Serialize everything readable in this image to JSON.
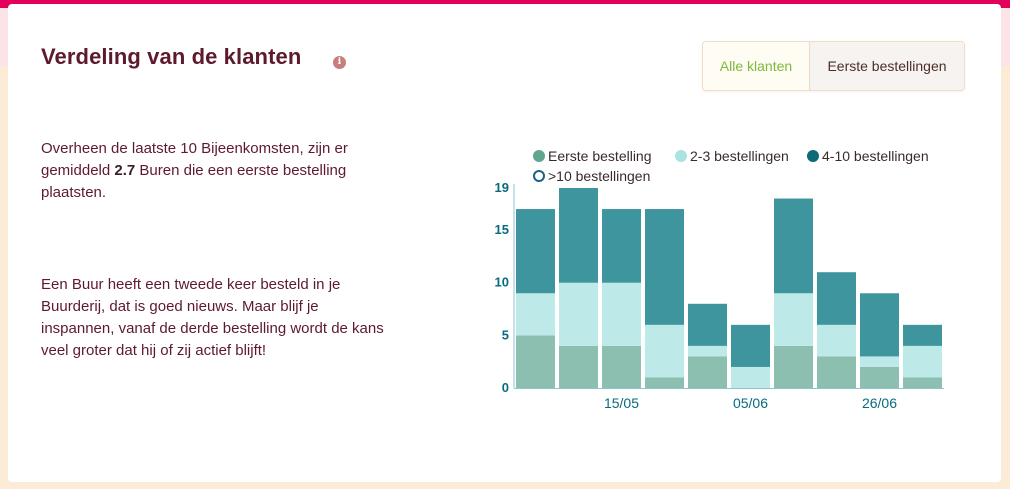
{
  "header": {
    "title": "Verdeling van de klanten",
    "info_icon": "info-icon"
  },
  "filter": {
    "options": [
      "Alle klanten",
      "Eerste bestellingen"
    ],
    "selected": "Alle klanten"
  },
  "text": {
    "p1_a": "Overheen de laatste 10 Bijeenkomsten, zijn er gemiddeld ",
    "p1_value": "2.7",
    "p1_b": " Buren die een eerste bestelling plaatsten.",
    "p2": "Een Buur heeft een tweede keer besteld in je Buurderij, dat is goed nieuws. Maar blijf je inspannen, vanaf de derde bestelling wordt de kans veel groter dat hij of zij actief blijft!"
  },
  "colors": {
    "accent_pink": "#e2005a",
    "title": "#5e1a2d",
    "series": [
      "#8dbfb0",
      "#bde9e8",
      "#3f959e",
      "#ffffff"
    ]
  },
  "chart_data": {
    "type": "bar",
    "stacked": true,
    "series": [
      {
        "name": "Eerste bestelling",
        "values": [
          5,
          4,
          4,
          1,
          3,
          0,
          4,
          3,
          2,
          1
        ]
      },
      {
        "name": "2-3 bestellingen",
        "values": [
          4,
          6,
          6,
          5,
          1,
          2,
          5,
          3,
          1,
          3
        ]
      },
      {
        "name": "4-10 bestellingen",
        "values": [
          8,
          9,
          7,
          11,
          4,
          4,
          9,
          5,
          6,
          2
        ]
      },
      {
        "name": ">10 bestellingen",
        "values": [
          0,
          0,
          0,
          0,
          0,
          0,
          0,
          0,
          0,
          0
        ]
      }
    ],
    "x_tick_labels": [
      {
        "index": 2.5,
        "label": "15/05"
      },
      {
        "index": 5.5,
        "label": "05/06"
      },
      {
        "index": 8.5,
        "label": "26/06"
      }
    ],
    "y_ticks": [
      0,
      5,
      10,
      15,
      19
    ],
    "ylim": [
      0,
      19
    ],
    "legend_position": "top"
  }
}
